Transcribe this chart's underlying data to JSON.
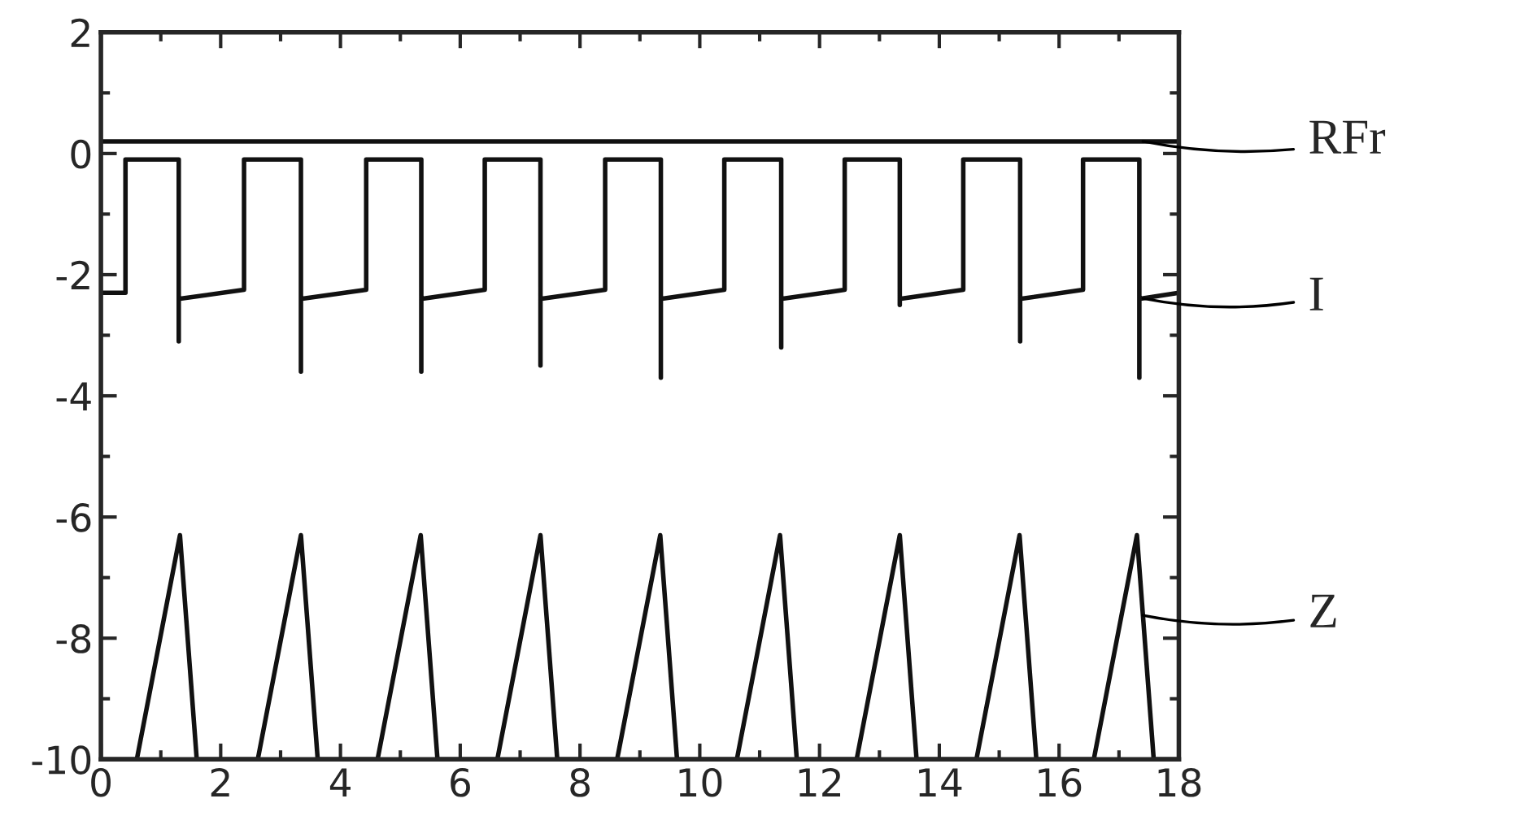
{
  "chart_data": {
    "type": "line",
    "xlim": [
      0,
      18
    ],
    "ylim": [
      -10,
      2
    ],
    "xticks": [
      0,
      2,
      4,
      6,
      8,
      10,
      12,
      14,
      16,
      18
    ],
    "yticks": [
      {
        "value": 2,
        "label": "2"
      },
      {
        "value": 0,
        "label": "0"
      },
      {
        "value": -2,
        "label": "-2"
      },
      {
        "value": -4,
        "label": "-4"
      },
      {
        "value": -6,
        "label": "-6"
      },
      {
        "value": -8,
        "label": "-8"
      },
      {
        "value": -10,
        "label": "-10"
      }
    ],
    "grid": false,
    "legend": false,
    "marker": "none",
    "line_style": "solid",
    "series": [
      {
        "name": "RFr",
        "color": "#111111",
        "x": [
          0,
          2,
          4,
          6,
          8,
          10,
          12,
          14,
          16,
          18
        ],
        "values": [
          0.2,
          0.2,
          0.2,
          0.2,
          0.2,
          0.2,
          0.2,
          0.2,
          0.2,
          0.2
        ]
      },
      {
        "name": "I",
        "color": "#111111",
        "x": [
          0,
          0.41,
          0.41,
          1.3,
          1.3,
          1.3,
          2.39,
          2.39,
          3.34,
          3.34,
          3.34,
          4.43,
          4.43,
          5.35,
          5.35,
          5.35,
          6.41,
          6.41,
          7.34,
          7.34,
          7.34,
          8.42,
          8.42,
          9.35,
          9.35,
          9.35,
          10.41,
          10.41,
          11.36,
          11.36,
          11.36,
          12.42,
          12.42,
          13.34,
          13.34,
          13.34,
          14.4,
          14.4,
          15.35,
          15.35,
          15.35,
          16.4,
          16.4,
          17.34,
          17.34,
          17.34,
          18
        ],
        "values": [
          -2.3,
          -2.3,
          -0.1,
          -0.1,
          -3.1,
          -2.4,
          -2.25,
          -0.1,
          -0.1,
          -3.6,
          -2.4,
          -2.25,
          -0.1,
          -0.1,
          -3.6,
          -2.4,
          -2.25,
          -0.1,
          -0.1,
          -3.5,
          -2.4,
          -2.25,
          -0.1,
          -0.1,
          -3.7,
          -2.4,
          -2.25,
          -0.1,
          -0.1,
          -3.2,
          -2.4,
          -2.25,
          -0.1,
          -0.1,
          -2.5,
          -2.4,
          -2.25,
          -0.1,
          -0.1,
          -3.1,
          -2.4,
          -2.25,
          -0.1,
          -0.1,
          -3.7,
          -2.4,
          -2.3
        ]
      },
      {
        "name": "Z",
        "color": "#111111",
        "x": [
          0,
          0.6,
          1.32,
          1.6,
          2.62,
          3.34,
          3.62,
          4.62,
          5.34,
          5.62,
          6.62,
          7.34,
          7.62,
          8.62,
          9.34,
          9.62,
          10.62,
          11.34,
          11.62,
          12.62,
          13.34,
          13.62,
          14.62,
          15.34,
          15.62,
          16.58,
          17.3,
          17.58,
          18
        ],
        "values": [
          -10,
          -10,
          -6.3,
          -10,
          -10,
          -6.3,
          -10,
          -10,
          -6.3,
          -10,
          -10,
          -6.3,
          -10,
          -10,
          -6.3,
          -10,
          -10,
          -6.3,
          -10,
          -10,
          -6.3,
          -10,
          -10,
          -6.3,
          -10,
          -10,
          -6.3,
          -10,
          -10
        ]
      }
    ]
  }
}
